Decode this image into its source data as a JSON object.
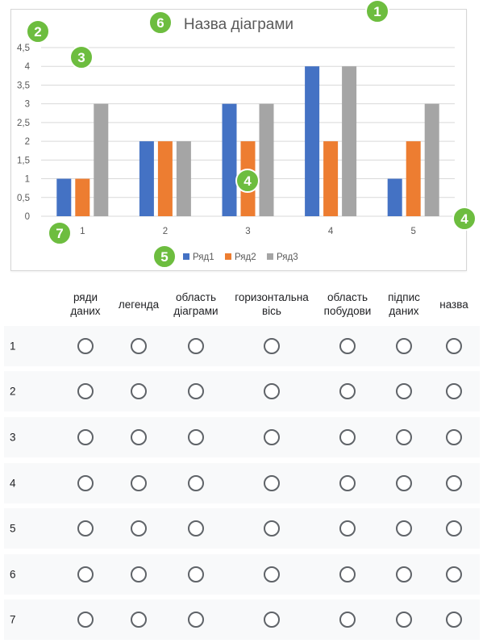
{
  "chart_data": {
    "type": "bar",
    "title": "Назва діаграми",
    "categories": [
      "1",
      "2",
      "3",
      "4",
      "5"
    ],
    "series": [
      {
        "name": "Ряд1",
        "values": [
          1,
          2,
          3,
          4,
          1
        ],
        "color": "#4472c4"
      },
      {
        "name": "Ряд2",
        "values": [
          1,
          2,
          2,
          2,
          2
        ],
        "color": "#ed7d31"
      },
      {
        "name": "Ряд3",
        "values": [
          3,
          2,
          3,
          4,
          3
        ],
        "color": "#a5a5a5"
      }
    ],
    "ylim": [
      0,
      4.5
    ],
    "yticks": [
      "0",
      "0,5",
      "1",
      "1,5",
      "2",
      "2,5",
      "3",
      "3,5",
      "4",
      "4,5"
    ],
    "grid": true,
    "legend_position": "bottom"
  },
  "badges": [
    "1",
    "2",
    "3",
    "4",
    "4",
    "5",
    "6",
    "7"
  ],
  "quiz": {
    "columns": [
      "ряди\nданих",
      "легенда",
      "область\nдіаграми",
      "горизонтальна\nвісь",
      "область\nпобудови",
      "підпис\nданих",
      "назва"
    ],
    "rows": [
      "1",
      "2",
      "3",
      "4",
      "5",
      "6",
      "7"
    ]
  },
  "colors": {
    "badge": "#6dbd3f",
    "row_band": "#f8f9fa",
    "radio_border": "#5f6368"
  }
}
